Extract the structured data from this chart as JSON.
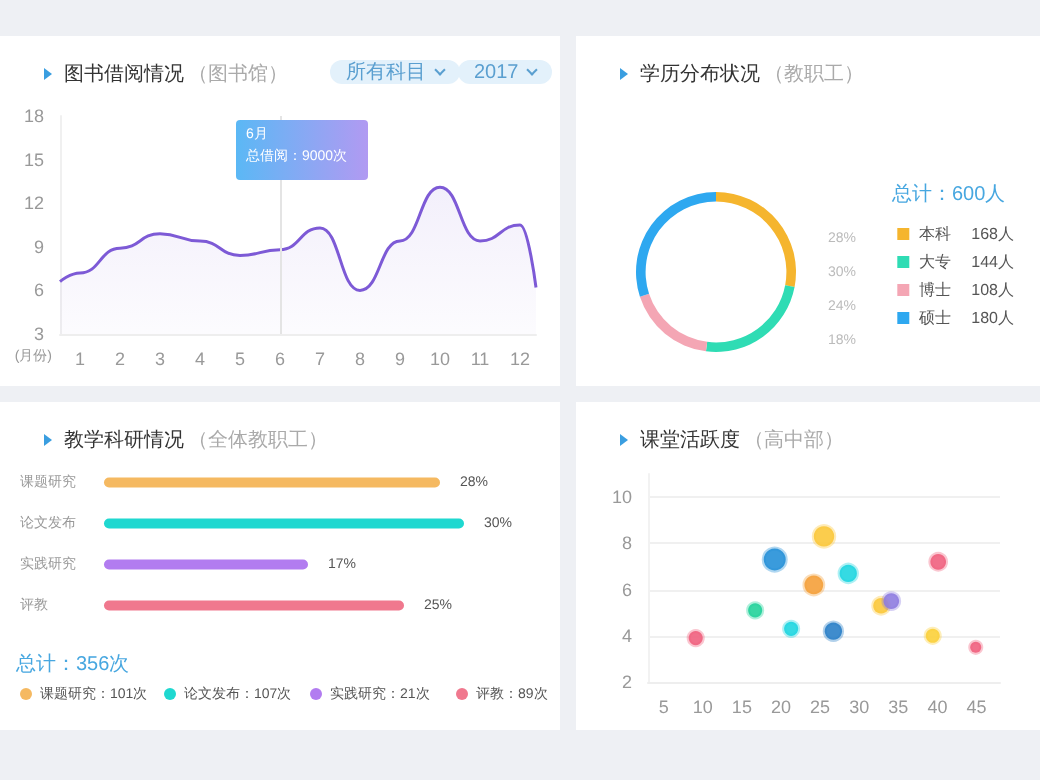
{
  "chart_data": [
    {
      "type": "area",
      "title": "图书借阅情况",
      "subtitle": "（图书馆）",
      "xlabel": "(月份)",
      "x": [
        0.5,
        1,
        2,
        3,
        4,
        5,
        6,
        7,
        8,
        9,
        10,
        11,
        12,
        12.4
      ],
      "values": [
        6.6,
        7.2,
        8.9,
        9.9,
        9.4,
        8.4,
        8.8,
        10.3,
        6.0,
        9.4,
        13.1,
        9.4,
        10.5,
        6.2
      ],
      "color": "#7d5ad6",
      "xlim": [
        0.5,
        12.4
      ],
      "xticks": [
        1,
        2,
        3,
        4,
        5,
        6,
        7,
        8,
        9,
        10,
        11,
        12
      ],
      "ylim": [
        3,
        18
      ],
      "yticks": [
        3,
        6,
        9,
        12,
        15,
        18
      ],
      "grid": false,
      "marker": "none",
      "ref_lines": [
        {
          "axis": "x",
          "value": 6
        }
      ],
      "annotations": [
        "所有科目",
        "2017",
        "6月",
        "总借阅：9000次"
      ]
    },
    {
      "type": "donut",
      "title": "学历分布状况",
      "subtitle": "（教职工）",
      "categories": [
        "本科",
        "大专",
        "博士",
        "硕士"
      ],
      "values": [
        168,
        144,
        108,
        180
      ],
      "colors": [
        "#f5b52e",
        "#2fdcb4",
        "#f4a6b4",
        "#2ea8f0"
      ],
      "value_labels": [
        "168人",
        "144人",
        "108人",
        "180人"
      ],
      "legend": "right",
      "annotations": [
        "总计：600人",
        "28%",
        "30%",
        "24%",
        "18%"
      ]
    },
    {
      "type": "bar",
      "orientation": "horizontal",
      "title": "教学科研情况",
      "subtitle": "（全体教职工）",
      "categories": [
        "课题研究",
        "论文发布",
        "实践研究",
        "评教"
      ],
      "values": [
        28,
        30,
        17,
        25
      ],
      "colors": [
        "#f5b961",
        "#1fd8d0",
        "#b27cf0",
        "#f0788e"
      ],
      "value_labels": [
        "28%",
        "30%",
        "17%",
        "25%"
      ],
      "annotations": [
        "总计：356次",
        "课题研究：101次",
        "论文发布：107次",
        "实践研究：21次",
        "评教：89次"
      ]
    },
    {
      "type": "bubble",
      "title": "课堂活跃度",
      "subtitle": "（高中部）",
      "x": [
        9.1,
        16.7,
        19.2,
        21.3,
        24.2,
        25.5,
        26.7,
        28.6,
        32.8,
        34.1,
        40.1,
        39.4,
        44.9
      ],
      "values": [
        3.9,
        5.1,
        7.3,
        4.3,
        6.2,
        8.3,
        4.2,
        6.7,
        5.3,
        5.5,
        7.2,
        4.0,
        3.5
      ],
      "sizes": [
        0.41,
        0.41,
        1,
        0.41,
        0.73,
        0.86,
        0.62,
        0.62,
        0.51,
        0.51,
        0.51,
        0.41,
        0.25
      ],
      "colors": [
        "#f0607e",
        "#22d39a",
        "#2590d8",
        "#1fd6e0",
        "#f5a03a",
        "#fbc83a",
        "#2a80c8",
        "#1fd6e0",
        "#fbc83a",
        "#8e7ce0",
        "#f0607e",
        "#fbd03a",
        "#f0607e"
      ],
      "xlim": [
        3,
        48
      ],
      "xticks": [
        5,
        10,
        15,
        20,
        25,
        30,
        35,
        40,
        45
      ],
      "ylim": [
        2,
        11
      ],
      "yticks": [
        2,
        4,
        6,
        8,
        10
      ],
      "grid": "y"
    }
  ]
}
